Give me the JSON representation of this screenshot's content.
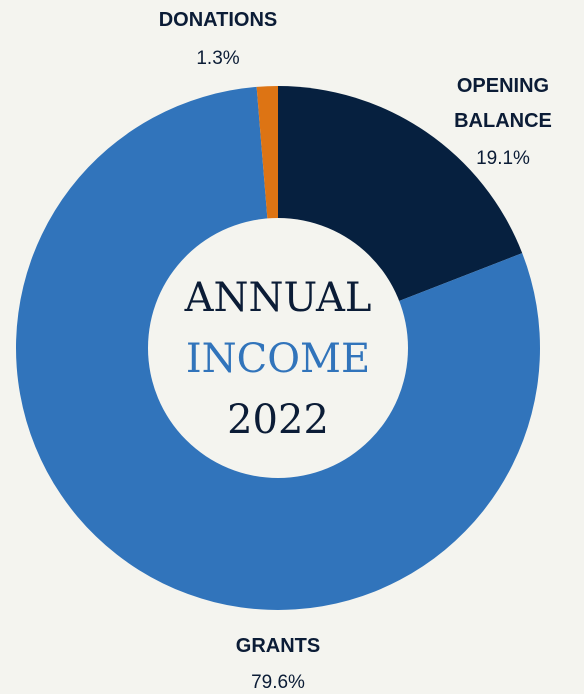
{
  "chart_data": {
    "type": "pie",
    "donut": true,
    "center_label": {
      "line1": "ANNUAL",
      "line2": "INCOME",
      "line3": "2022"
    },
    "slices": [
      {
        "name": "OPENING BALANCE",
        "label_lines": [
          "OPENING",
          "BALANCE"
        ],
        "value": 19.1,
        "value_label": "19.1%",
        "color": "#06203f"
      },
      {
        "name": "GRANTS",
        "label_lines": [
          "GRANTS"
        ],
        "value": 79.6,
        "value_label": "79.6%",
        "color": "#3174bb"
      },
      {
        "name": "DONATIONS",
        "label_lines": [
          "DONATIONS"
        ],
        "value": 1.3,
        "value_label": "1.3%",
        "color": "#dd7414"
      }
    ],
    "colors": {
      "background": "#f4f4ef",
      "center": "#f4f4ef",
      "text_dark": "#0b1c36",
      "text_accent": "#3174bb"
    }
  }
}
